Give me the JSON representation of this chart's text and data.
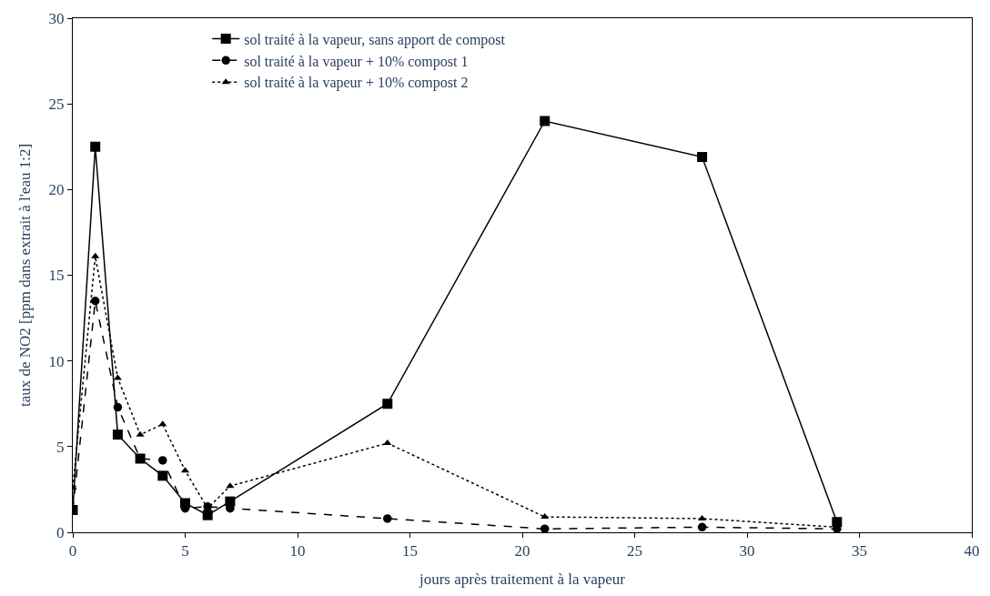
{
  "chart_data": {
    "type": "line",
    "xlabel": "jours après traitement à la vapeur",
    "ylabel": "taux de NO2 [ppm dans extrait à l'eau 1:2]",
    "x": [
      0,
      1,
      2,
      3,
      4,
      5,
      6,
      7,
      14,
      21,
      28,
      34
    ],
    "series": [
      {
        "name": "sol traité à la vapeur, sans apport de compost",
        "color": "#000000",
        "marker": "square",
        "line_style": "solid",
        "values": [
          1.3,
          22.5,
          5.7,
          4.3,
          3.3,
          1.7,
          1.0,
          1.8,
          7.5,
          24.0,
          21.9,
          0.6
        ]
      },
      {
        "name": "sol traité à la vapeur + 10% compost 1",
        "color": "#000000",
        "marker": "circle",
        "line_style": "dashed",
        "values": [
          1.3,
          13.5,
          7.3,
          4.3,
          4.2,
          1.4,
          1.5,
          1.4,
          0.8,
          0.2,
          0.3,
          0.2
        ]
      },
      {
        "name": "sol traité à la vapeur + 10% compost 2",
        "color": "#000000",
        "marker": "triangle",
        "line_style": "dotted",
        "values": [
          2.6,
          16.1,
          9.0,
          5.7,
          6.3,
          3.6,
          1.4,
          2.7,
          5.2,
          0.9,
          0.8,
          0.3
        ]
      }
    ],
    "xlim": [
      0,
      40
    ],
    "xticks": [
      0,
      5,
      10,
      15,
      20,
      25,
      30,
      35,
      40
    ],
    "ylim": [
      0,
      30
    ],
    "yticks": [
      0,
      5,
      10,
      15,
      20,
      25,
      30
    ],
    "grid": false,
    "legend": "top left"
  }
}
